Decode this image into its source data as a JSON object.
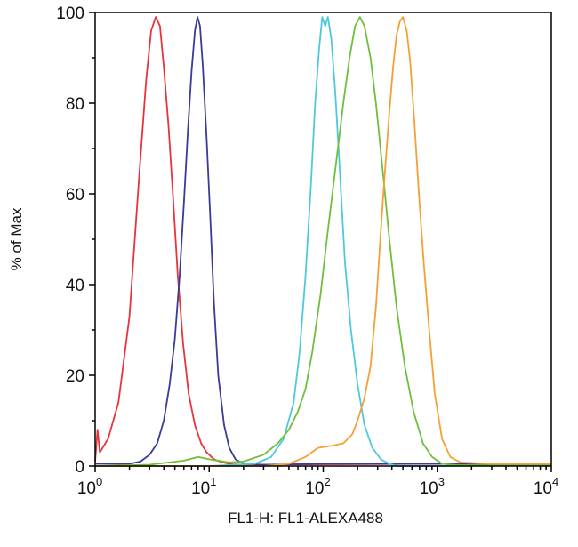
{
  "chart_data": {
    "type": "line",
    "title": "",
    "xlabel": "FL1-H: FL1-ALEXA488",
    "ylabel": "% of Max",
    "xscale": "log",
    "xlim": [
      1,
      10000
    ],
    "ylim": [
      0,
      100
    ],
    "grid": false,
    "legend": "none",
    "x_ticks": [
      {
        "base": "10",
        "exp": "0"
      },
      {
        "base": "10",
        "exp": "1"
      },
      {
        "base": "10",
        "exp": "2"
      },
      {
        "base": "10",
        "exp": "3"
      },
      {
        "base": "10",
        "exp": "4"
      }
    ],
    "y_ticks": [
      "0",
      "20",
      "40",
      "60",
      "80",
      "100"
    ],
    "series": [
      {
        "color": "#e8333c",
        "x": [
          1.0,
          1.05,
          1.1,
          1.3,
          1.6,
          2.0,
          2.4,
          2.8,
          3.1,
          3.4,
          3.7,
          4.0,
          4.4,
          4.8,
          5.3,
          5.9,
          6.6,
          7.5,
          8.5,
          9.5,
          11,
          13,
          16,
          20,
          30,
          100,
          1000,
          10000
        ],
        "y": [
          1,
          8,
          3,
          6,
          14,
          33,
          62,
          85,
          96,
          99,
          97,
          88,
          75,
          60,
          42,
          27,
          16,
          9,
          5,
          3,
          1.5,
          0.8,
          0.4,
          0.3,
          0.3,
          0.4,
          0.5,
          0.5
        ]
      },
      {
        "color": "#3a3a9a",
        "x": [
          1.0,
          2.0,
          2.5,
          3.0,
          3.5,
          4.0,
          4.5,
          5.0,
          5.5,
          6.0,
          6.5,
          7.0,
          7.5,
          7.9,
          8.3,
          8.8,
          9.5,
          10.2,
          11,
          12,
          13.5,
          15,
          17,
          20,
          30,
          100,
          1000,
          10000
        ],
        "y": [
          0.5,
          0.5,
          1,
          2.5,
          5,
          10,
          18,
          28,
          42,
          58,
          74,
          87,
          96,
          99,
          97,
          88,
          72,
          55,
          36,
          20,
          9,
          4,
          1.5,
          0.5,
          0.3,
          0.5,
          0.5,
          0.5
        ]
      },
      {
        "color": "#4ec8dc",
        "x": [
          1.0,
          10,
          25,
          35,
          45,
          55,
          62,
          70,
          78,
          85,
          92,
          98,
          104,
          110,
          118,
          128,
          140,
          155,
          175,
          200,
          230,
          270,
          320,
          380,
          450,
          1000,
          10000
        ],
        "y": [
          0,
          0,
          0.5,
          2,
          6,
          14,
          25,
          42,
          62,
          80,
          92,
          99,
          97,
          99,
          94,
          82,
          65,
          45,
          30,
          18,
          9,
          4,
          1.5,
          0.5,
          0,
          0,
          0.3
        ]
      },
      {
        "color": "#6fbf3a",
        "x": [
          1.0,
          3,
          6,
          8,
          10,
          15,
          20,
          30,
          40,
          50,
          60,
          70,
          80,
          95,
          110,
          130,
          150,
          170,
          190,
          210,
          230,
          260,
          290,
          330,
          380,
          440,
          520,
          620,
          750,
          900,
          1100,
          1500,
          3000,
          10000
        ],
        "y": [
          0,
          0.3,
          1.2,
          2,
          1.5,
          0.8,
          1,
          2.5,
          5,
          8,
          12,
          17,
          25,
          38,
          52,
          67,
          80,
          90,
          97,
          99,
          97,
          90,
          80,
          66,
          50,
          35,
          22,
          12,
          5,
          2,
          0.5,
          0.2,
          0.2,
          0.2
        ]
      },
      {
        "color": "#f5a036",
        "x": [
          1.0,
          30,
          50,
          70,
          90,
          120,
          150,
          180,
          200,
          230,
          260,
          290,
          320,
          350,
          380,
          410,
          440,
          470,
          500,
          540,
          580,
          630,
          690,
          760,
          850,
          950,
          1100,
          1300,
          1600,
          3000,
          10000
        ],
        "y": [
          0,
          0,
          0.5,
          2,
          4,
          4.5,
          5,
          7,
          10,
          15,
          22,
          35,
          52,
          66,
          78,
          88,
          95,
          98,
          99,
          96,
          89,
          76,
          60,
          45,
          30,
          16,
          6,
          2,
          0.8,
          0.5,
          0.5
        ]
      }
    ]
  }
}
